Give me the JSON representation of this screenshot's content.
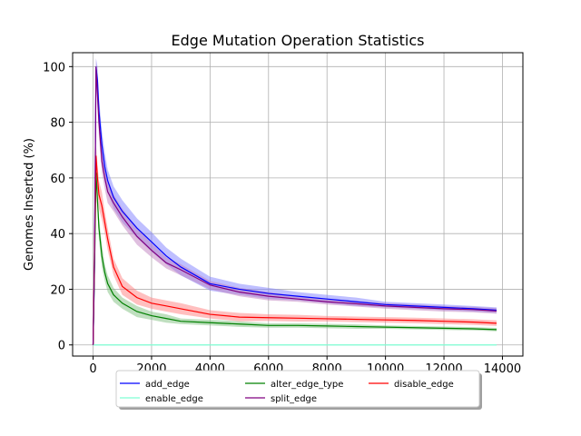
{
  "chart_data": {
    "type": "line",
    "title": "Edge Mutation Operation Statistics",
    "xlabel": "",
    "ylabel": "Genomes Inserted (%)",
    "xlim": [
      -700,
      14700
    ],
    "ylim": [
      -4,
      105
    ],
    "xticks": [
      0,
      2000,
      4000,
      6000,
      8000,
      10000,
      12000,
      14000
    ],
    "yticks": [
      0,
      20,
      40,
      60,
      80,
      100
    ],
    "grid": true,
    "legend_position": "bottom-center-outside",
    "series": [
      {
        "name": "add_edge",
        "color": "#0000ff",
        "band_color": "#8080ff",
        "x": [
          0,
          50,
          100,
          150,
          200,
          300,
          400,
          500,
          700,
          1000,
          1500,
          2000,
          2500,
          3000,
          4000,
          5000,
          6000,
          7000,
          8000,
          9000,
          10000,
          11000,
          12000,
          13000,
          13800
        ],
        "y": [
          0,
          30,
          100,
          95,
          84,
          72,
          64,
          59,
          53,
          48,
          42,
          37,
          32,
          28,
          22,
          20,
          18.5,
          17.5,
          16.5,
          15.5,
          14.5,
          14,
          13.5,
          13,
          12.5
        ],
        "band": [
          0,
          3,
          3,
          5,
          5,
          5,
          5,
          4,
          4,
          4,
          3.5,
          3.5,
          3,
          3,
          2.5,
          2,
          2,
          1.5,
          1.5,
          1.5,
          1,
          1,
          1,
          1,
          1
        ]
      },
      {
        "name": "alter_edge_type",
        "color": "#008000",
        "band_color": "#80c080",
        "x": [
          0,
          50,
          100,
          150,
          200,
          300,
          400,
          500,
          700,
          1000,
          1500,
          2000,
          2500,
          3000,
          4000,
          5000,
          6000,
          7000,
          8000,
          9000,
          10000,
          11000,
          12000,
          13000,
          13800
        ],
        "y": [
          0,
          28,
          62,
          52,
          42,
          32,
          26,
          22,
          18,
          15,
          12,
          10.5,
          9.5,
          8.5,
          8,
          7.5,
          7,
          7,
          6.8,
          6.6,
          6.4,
          6.2,
          6,
          5.8,
          5.5
        ],
        "band": [
          0,
          3,
          3,
          4,
          4,
          4,
          3,
          3,
          2.5,
          2,
          2,
          1.5,
          1.5,
          1,
          1,
          1,
          0.8,
          0.8,
          0.8,
          0.8,
          0.6,
          0.6,
          0.6,
          0.6,
          0.6
        ]
      },
      {
        "name": "disable_edge",
        "color": "#ff0000",
        "band_color": "#ff8080",
        "x": [
          0,
          50,
          100,
          150,
          200,
          300,
          400,
          500,
          700,
          1000,
          1500,
          2000,
          2500,
          3000,
          4000,
          5000,
          6000,
          7000,
          8000,
          9000,
          10000,
          11000,
          12000,
          13000,
          13800
        ],
        "y": [
          0,
          35,
          68,
          60,
          54,
          50,
          44,
          38,
          28,
          21,
          17,
          15,
          14,
          13,
          11,
          10,
          9.8,
          9.6,
          9.4,
          9.2,
          9,
          8.8,
          8.5,
          8.2,
          7.8
        ],
        "band": [
          0,
          3,
          4,
          5,
          5,
          5,
          4,
          4,
          3,
          3,
          2.5,
          2,
          2,
          2,
          1.5,
          1.5,
          1.2,
          1.2,
          1,
          1,
          1,
          1,
          1,
          1,
          1
        ]
      },
      {
        "name": "enable_edge",
        "color": "#7fffd4",
        "band_color": "#c0ffeb",
        "x": [
          0,
          13800
        ],
        "y": [
          0,
          0
        ],
        "band": [
          0,
          0
        ]
      },
      {
        "name": "split_edge",
        "color": "#800080",
        "band_color": "#c080c0",
        "x": [
          0,
          50,
          100,
          150,
          200,
          300,
          400,
          500,
          700,
          1000,
          1500,
          2000,
          2500,
          3000,
          4000,
          5000,
          6000,
          7000,
          8000,
          9000,
          10000,
          11000,
          12000,
          13000,
          13800
        ],
        "y": [
          0,
          32,
          100,
          90,
          80,
          66,
          60,
          55,
          51,
          46,
          39,
          34,
          29.5,
          27,
          21.5,
          19,
          17.5,
          16.5,
          15.5,
          14.8,
          14,
          13.5,
          13,
          12.7,
          12.2
        ],
        "band": [
          0,
          3,
          3,
          5,
          5,
          4,
          4,
          4,
          3,
          3,
          3,
          2.5,
          2,
          2,
          1.5,
          1.5,
          1.5,
          1,
          1,
          1,
          1,
          1,
          1,
          1,
          1
        ]
      }
    ]
  }
}
